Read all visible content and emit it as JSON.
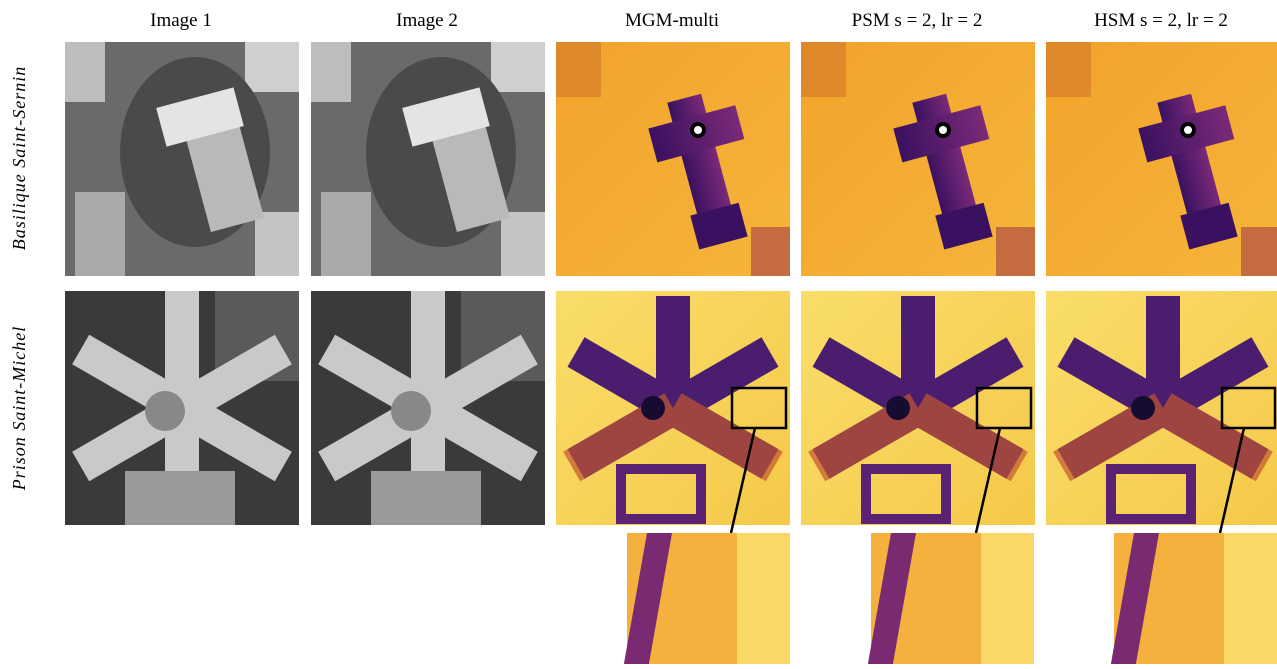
{
  "columns": [
    "Image 1",
    "Image 2",
    "MGM-multi",
    "PSM s = 2, lr = 2",
    "HSM s = 2, lr = 2"
  ],
  "rows": [
    "Basilique Saint-Sernin",
    "Prison Saint-Michel"
  ]
}
